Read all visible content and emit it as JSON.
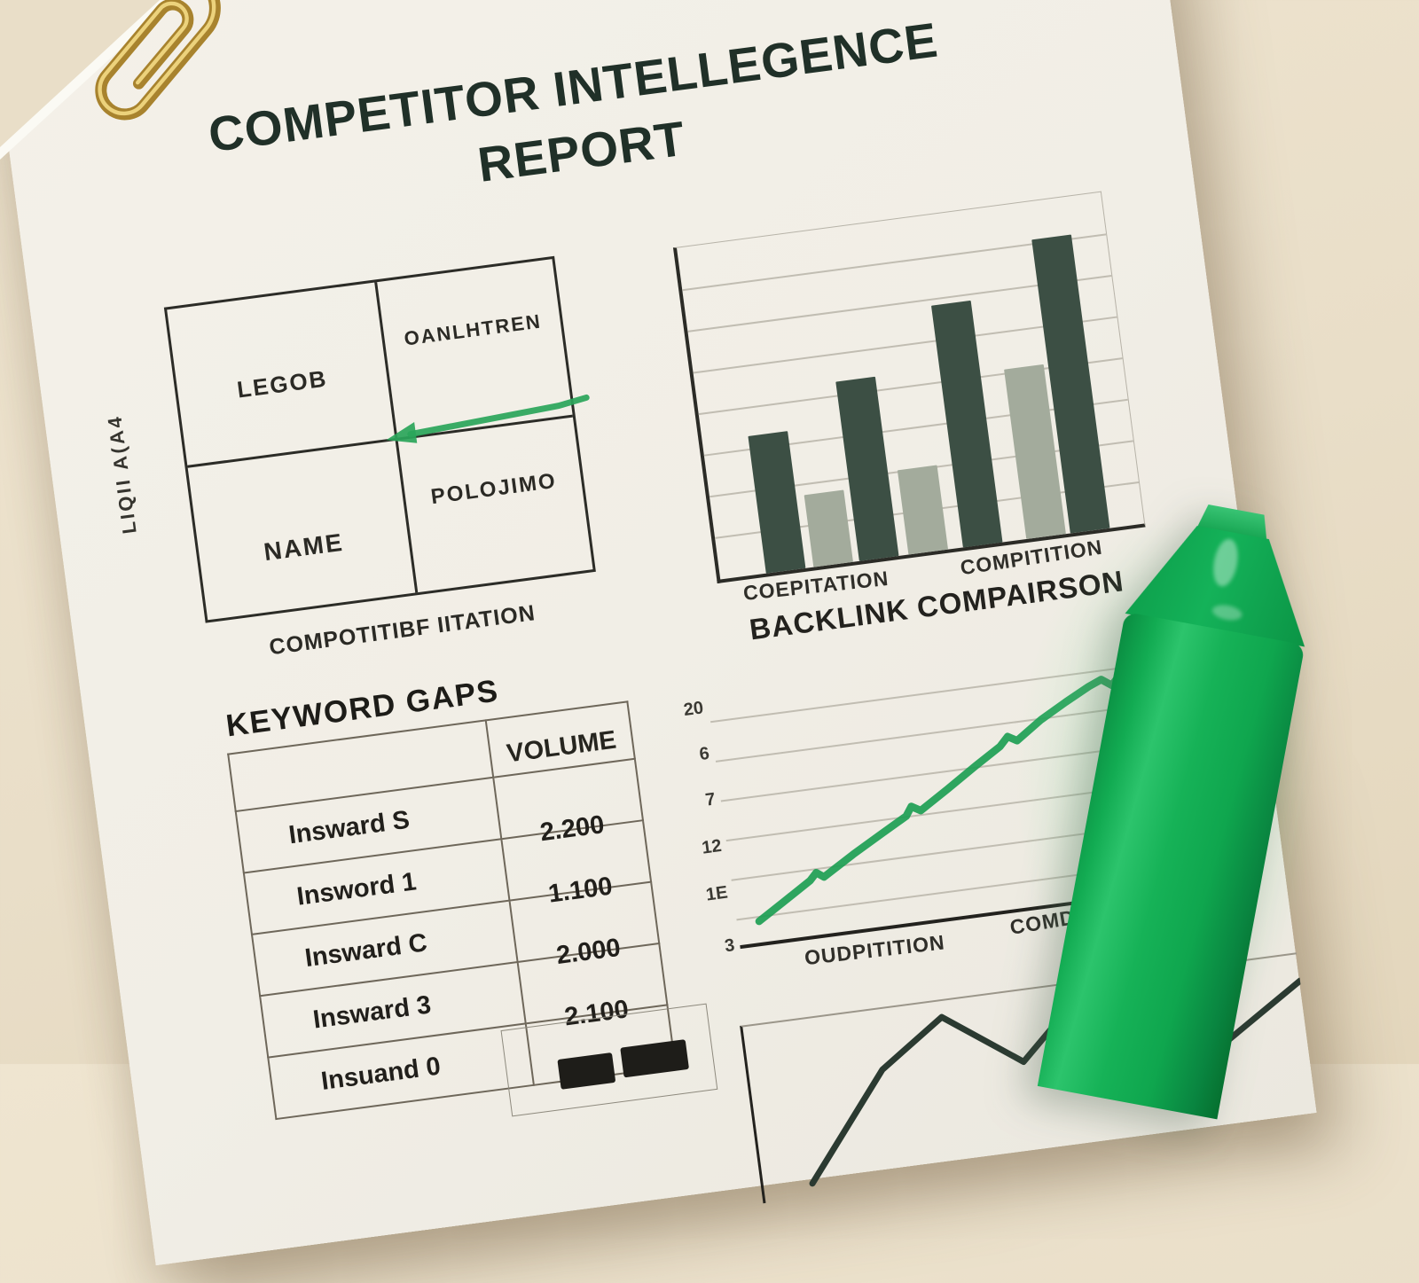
{
  "colors": {
    "background": "#e9dec8",
    "paper": "#f1eee6",
    "ink": "#24332b",
    "bar_dark": "#3c4f44",
    "bar_light": "#a3ab9c",
    "marker_green": "#12ac52",
    "paperclip_gold": "#c49e44",
    "annotation_green": "#2aa55a"
  },
  "report": {
    "title_line1": "COMPETITOR INTELLEGENCE",
    "title_line2": "REPORT"
  },
  "quadrant_matrix": {
    "top_left": "LEGOB",
    "top_right": "OANLHTREN",
    "bottom_left": "NAME",
    "bottom_right": "POLOJIMO",
    "y_axis_label": "LIQII A(A4",
    "x_axis_label": "COMPOTITIBF IITATION"
  },
  "backlink_section": {
    "title": "BACKLINK COMPAIRSON"
  },
  "keyword_table": {
    "title": "KEYWORD GAPS",
    "columns": [
      "",
      "VOLUME"
    ],
    "rows": [
      {
        "keyword": "Insward S",
        "volume": "2.200"
      },
      {
        "keyword": "Insword 1",
        "volume": "1.100"
      },
      {
        "keyword": "Insward C",
        "volume": "2.000"
      },
      {
        "keyword": "Insward 3",
        "volume": "2.100"
      },
      {
        "keyword": "Insuand 0",
        "volume": ""
      }
    ]
  },
  "chart_data": [
    {
      "type": "bar",
      "title": "",
      "categories": [
        "COEPITATION",
        "COMPITITION"
      ],
      "bar_shades": [
        "dark",
        "light",
        "dark",
        "light",
        "dark",
        "light",
        "dark"
      ],
      "values_pct": [
        42,
        22,
        55,
        26,
        74,
        52,
        90
      ],
      "colors": {
        "dark": "#3c4f44",
        "light": "#a3ab9c"
      },
      "ylim": [
        0,
        100
      ],
      "grid": true
    },
    {
      "type": "line",
      "title": "BACKLINK COMPAIRSON",
      "y_ticks": [
        "20",
        "6",
        "7",
        "12",
        "1E",
        "3"
      ],
      "x_labels": [
        "OUDPITITION",
        "COMDITTZION"
      ],
      "line_color": "#1d9e54",
      "trend": "rising",
      "points": [
        [
          25,
          276
        ],
        [
          55,
          258
        ],
        [
          88,
          238
        ],
        [
          96,
          230
        ],
        [
          104,
          236
        ],
        [
          140,
          215
        ],
        [
          175,
          196
        ],
        [
          205,
          180
        ],
        [
          212,
          170
        ],
        [
          222,
          176
        ],
        [
          255,
          156
        ],
        [
          290,
          134
        ],
        [
          320,
          116
        ],
        [
          330,
          106
        ],
        [
          340,
          112
        ],
        [
          370,
          92
        ],
        [
          400,
          76
        ],
        [
          428,
          62
        ],
        [
          443,
          56
        ],
        [
          454,
          64
        ],
        [
          460,
          58
        ]
      ]
    },
    {
      "type": "line",
      "title": "",
      "line_color": "#2b3a31",
      "points": [
        [
          55,
          185
        ],
        [
          150,
          68
        ],
        [
          224,
          18
        ],
        [
          309,
          80
        ],
        [
          381,
          14
        ],
        [
          517,
          101
        ],
        [
          630,
          30
        ]
      ]
    }
  ]
}
